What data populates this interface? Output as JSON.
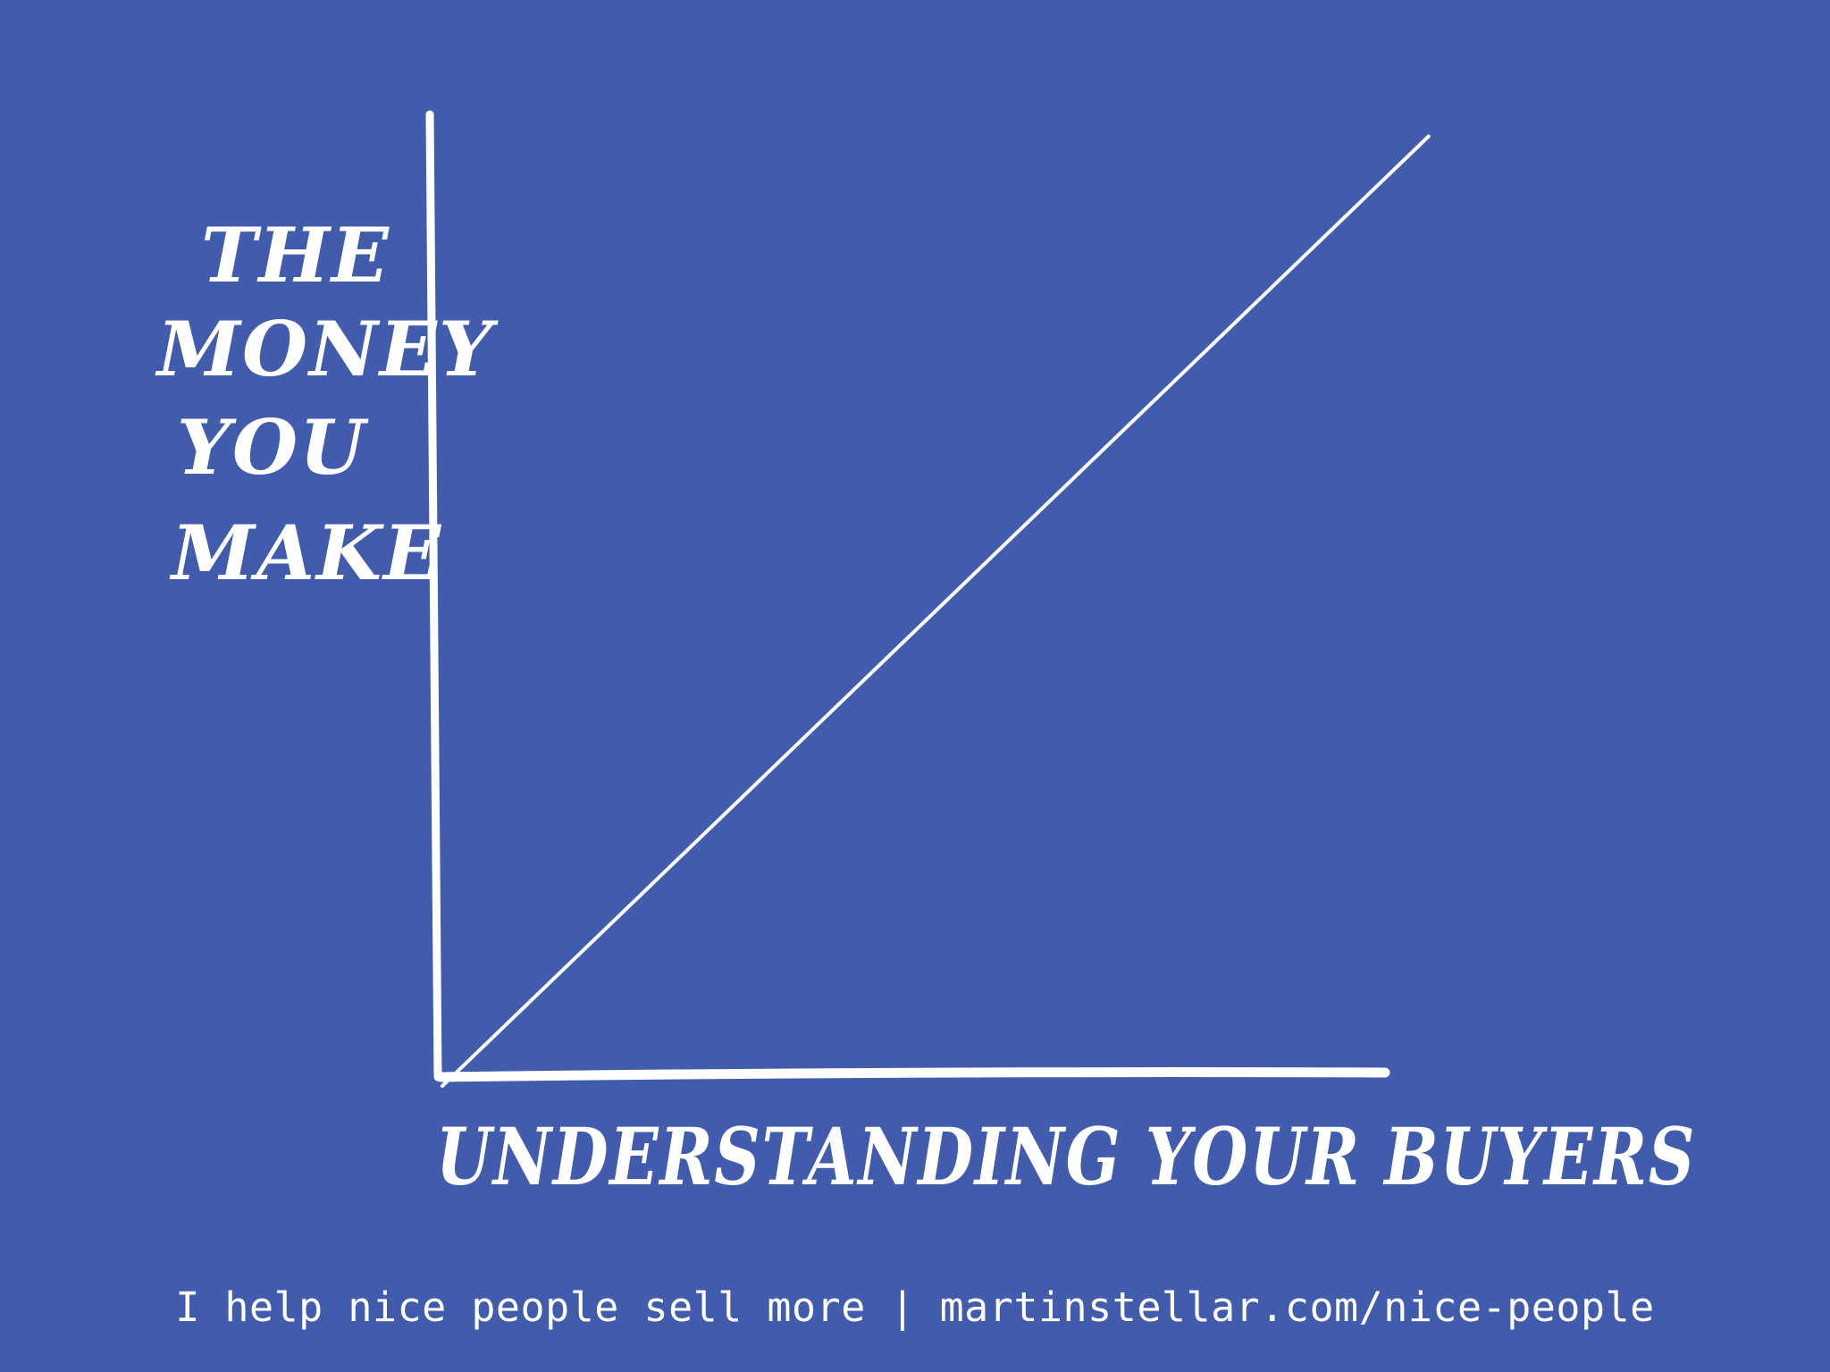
{
  "colors": {
    "background": "#425cad",
    "ink": "#ffffff"
  },
  "chart_data": {
    "type": "line",
    "title": "",
    "xlabel": "UNDERSTANDING YOUR BUYERS",
    "ylabel_lines": [
      "THE",
      "MONEY",
      "YOU",
      "MAKE"
    ],
    "series": [
      {
        "x": [
          0,
          1
        ],
        "y": [
          0,
          1
        ]
      }
    ],
    "xlim": [
      0,
      1.06
    ],
    "ylim": [
      0,
      1.04
    ],
    "grid": false,
    "ticks": false
  },
  "footer": {
    "text": "I help nice people sell more | martinstellar.com/nice-people"
  }
}
